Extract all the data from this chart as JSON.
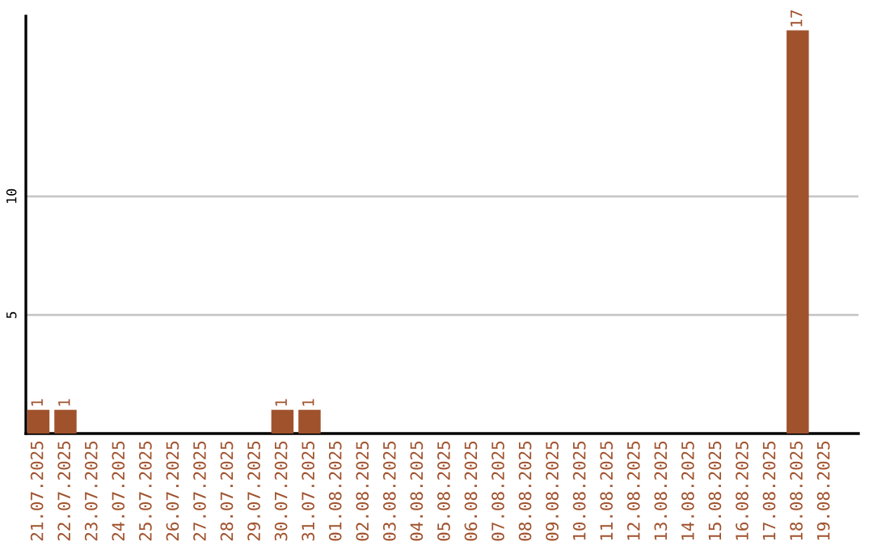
{
  "chart_data": {
    "type": "bar",
    "categories": [
      "21.07.2025",
      "22.07.2025",
      "23.07.2025",
      "24.07.2025",
      "25.07.2025",
      "26.07.2025",
      "27.07.2025",
      "28.07.2025",
      "29.07.2025",
      "30.07.2025",
      "31.07.2025",
      "01.08.2025",
      "02.08.2025",
      "03.08.2025",
      "04.08.2025",
      "05.08.2025",
      "06.08.2025",
      "07.08.2025",
      "08.08.2025",
      "09.08.2025",
      "10.08.2025",
      "11.08.2025",
      "12.08.2025",
      "13.08.2025",
      "14.08.2025",
      "15.08.2025",
      "16.08.2025",
      "17.08.2025",
      "18.08.2025",
      "19.08.2025"
    ],
    "values": [
      1,
      1,
      0,
      0,
      0,
      0,
      0,
      0,
      0,
      1,
      1,
      0,
      0,
      0,
      0,
      0,
      0,
      0,
      0,
      0,
      0,
      0,
      0,
      0,
      0,
      0,
      0,
      0,
      17,
      0
    ],
    "value_labels": [
      "1",
      "1",
      null,
      null,
      null,
      null,
      null,
      null,
      null,
      "1",
      "1",
      null,
      null,
      null,
      null,
      null,
      null,
      null,
      null,
      null,
      null,
      null,
      null,
      null,
      null,
      null,
      null,
      null,
      "17",
      null
    ],
    "color": "#a0522d",
    "ylim": [
      0,
      17.6
    ],
    "yticks": [
      5,
      10
    ],
    "grid": "y"
  }
}
